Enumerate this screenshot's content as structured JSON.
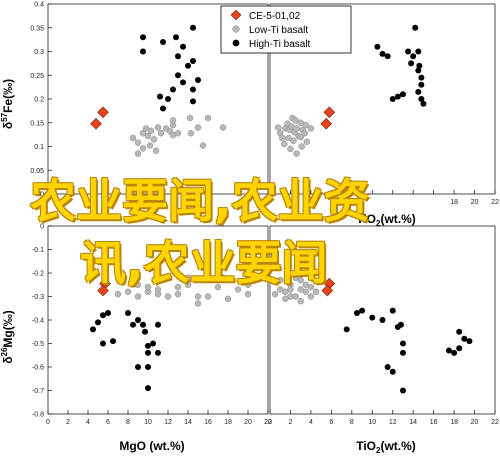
{
  "chart_data": [
    {
      "id": "tl",
      "type": "scatter",
      "xlim": [
        0,
        22
      ],
      "ylim": [
        0.0,
        0.4
      ],
      "xticks": [],
      "yticks": [
        0.0,
        0.05,
        0.1,
        0.15,
        0.2,
        0.25,
        0.3,
        0.35,
        0.4
      ],
      "ylabel": "δ57Fe(‰)",
      "xlabel": "",
      "series": [
        {
          "key": "ce",
          "points": [
            [
              5.5,
              0.172
            ],
            [
              4.8,
              0.148
            ]
          ]
        },
        {
          "key": "low",
          "points": [
            [
              8.5,
              0.118
            ],
            [
              9.0,
              0.108
            ],
            [
              9.5,
              0.128
            ],
            [
              9.8,
              0.138
            ],
            [
              10.0,
              0.122
            ],
            [
              10.3,
              0.133
            ],
            [
              10.6,
              0.115
            ],
            [
              11.0,
              0.14
            ],
            [
              11.3,
              0.128
            ],
            [
              11.8,
              0.138
            ],
            [
              12.2,
              0.132
            ],
            [
              12.5,
              0.124
            ],
            [
              13.0,
              0.128
            ],
            [
              12.5,
              0.145
            ],
            [
              12.5,
              0.155
            ],
            [
              9.5,
              0.096
            ],
            [
              10.2,
              0.102
            ],
            [
              10.8,
              0.091
            ],
            [
              14.2,
              0.16
            ],
            [
              14.3,
              0.128
            ],
            [
              16.0,
              0.16
            ],
            [
              15.0,
              0.14
            ],
            [
              17.5,
              0.14
            ],
            [
              15.5,
              0.102
            ],
            [
              9.0,
              0.085
            ]
          ]
        },
        {
          "key": "high",
          "points": [
            [
              9.5,
              0.33
            ],
            [
              9.5,
              0.3
            ],
            [
              11.5,
              0.32
            ],
            [
              12.8,
              0.33
            ],
            [
              13.0,
              0.29
            ],
            [
              14.5,
              0.35
            ],
            [
              13.5,
              0.31
            ],
            [
              14.0,
              0.27
            ],
            [
              13.0,
              0.25
            ],
            [
              13.5,
              0.235
            ],
            [
              12.5,
              0.22
            ],
            [
              11.2,
              0.205
            ],
            [
              11.5,
              0.18
            ],
            [
              12.0,
              0.2
            ],
            [
              14.5,
              0.28
            ],
            [
              15.0,
              0.24
            ],
            [
              14.5,
              0.195
            ],
            [
              14.5,
              0.22
            ]
          ]
        }
      ]
    },
    {
      "id": "tr",
      "type": "scatter",
      "xlim": [
        0,
        22
      ],
      "ylim": [
        0.0,
        0.4
      ],
      "xticks": [
        0,
        2,
        4,
        6,
        8,
        10,
        12,
        14,
        16,
        18,
        20,
        22
      ],
      "xticklabels_visible": [
        18,
        20,
        22
      ],
      "yticks": [],
      "xlabel": "TiO2(wt.%)",
      "ylabel": "",
      "series": [
        {
          "key": "ce",
          "points": [
            [
              5.8,
              0.172
            ],
            [
              5.5,
              0.148
            ]
          ]
        },
        {
          "key": "low",
          "points": [
            [
              0.8,
              0.14
            ],
            [
              1.0,
              0.128
            ],
            [
              1.2,
              0.118
            ],
            [
              1.5,
              0.138
            ],
            [
              1.7,
              0.148
            ],
            [
              1.9,
              0.135
            ],
            [
              2.1,
              0.142
            ],
            [
              2.4,
              0.13
            ],
            [
              2.6,
              0.138
            ],
            [
              2.8,
              0.122
            ],
            [
              3.0,
              0.12
            ],
            [
              3.2,
              0.135
            ],
            [
              3.4,
              0.128
            ],
            [
              3.6,
              0.11
            ],
            [
              1.4,
              0.105
            ],
            [
              2.0,
              0.095
            ],
            [
              2.6,
              0.085
            ],
            [
              3.1,
              0.1
            ],
            [
              2.2,
              0.16
            ],
            [
              2.5,
              0.155
            ],
            [
              3.0,
              0.15
            ],
            [
              4.0,
              0.138
            ],
            [
              1.8,
              0.118
            ],
            [
              2.3,
              0.112
            ],
            [
              3.5,
              0.145
            ]
          ]
        },
        {
          "key": "high",
          "points": [
            [
              10.5,
              0.31
            ],
            [
              11.0,
              0.295
            ],
            [
              11.5,
              0.29
            ],
            [
              13.5,
              0.3
            ],
            [
              13.8,
              0.275
            ],
            [
              14.0,
              0.29
            ],
            [
              14.2,
              0.35
            ],
            [
              14.5,
              0.3
            ],
            [
              14.5,
              0.26
            ],
            [
              14.8,
              0.23
            ],
            [
              14.8,
              0.245
            ],
            [
              13.0,
              0.21
            ],
            [
              12.5,
              0.205
            ],
            [
              12.0,
              0.2
            ],
            [
              14.5,
              0.215
            ],
            [
              14.8,
              0.2
            ],
            [
              15.0,
              0.19
            ],
            [
              14.6,
              0.27
            ]
          ]
        }
      ]
    },
    {
      "id": "bl",
      "type": "scatter",
      "xlim": [
        0,
        22
      ],
      "ylim": [
        -0.8,
        0.0
      ],
      "xticks": [
        0,
        2,
        4,
        6,
        8,
        10,
        12,
        14,
        16,
        18,
        20,
        22
      ],
      "yticks": [
        0.0,
        -0.1,
        -0.2,
        -0.3,
        -0.4,
        -0.5,
        -0.6,
        -0.7,
        -0.8
      ],
      "xlabel": "MgO (wt.%)",
      "ylabel": "δ26Mg(‰)",
      "series": [
        {
          "key": "ce",
          "points": [
            [
              5.7,
              -0.245
            ],
            [
              5.5,
              -0.275
            ]
          ]
        },
        {
          "key": "low",
          "points": [
            [
              7.0,
              -0.29
            ],
            [
              8.0,
              -0.28
            ],
            [
              9.0,
              -0.25
            ],
            [
              9.0,
              -0.3
            ],
            [
              10.0,
              -0.28
            ],
            [
              10.0,
              -0.26
            ],
            [
              11.0,
              -0.27
            ],
            [
              11.0,
              -0.29
            ],
            [
              12.0,
              -0.3
            ],
            [
              13.0,
              -0.26
            ],
            [
              13.0,
              -0.29
            ],
            [
              14.0,
              -0.25
            ],
            [
              15.0,
              -0.3
            ],
            [
              16.0,
              -0.3
            ],
            [
              17.0,
              -0.26
            ],
            [
              19.0,
              -0.27
            ],
            [
              20.0,
              -0.29
            ],
            [
              15.0,
              -0.33
            ],
            [
              18.0,
              -0.31
            ],
            [
              20.0,
              -0.25
            ],
            [
              14.0,
              -0.22
            ],
            [
              17.5,
              -0.22
            ]
          ]
        },
        {
          "key": "high",
          "points": [
            [
              4.5,
              -0.44
            ],
            [
              5.0,
              -0.41
            ],
            [
              5.5,
              -0.38
            ],
            [
              6.0,
              -0.37
            ],
            [
              8.0,
              -0.37
            ],
            [
              8.5,
              -0.42
            ],
            [
              9.0,
              -0.4
            ],
            [
              9.5,
              -0.42
            ],
            [
              9.7,
              -0.45
            ],
            [
              10.0,
              -0.51
            ],
            [
              10.0,
              -0.54
            ],
            [
              10.5,
              -0.5
            ],
            [
              11.0,
              -0.54
            ],
            [
              10.0,
              -0.6
            ],
            [
              10.0,
              -0.69
            ],
            [
              9.0,
              -0.6
            ],
            [
              5.5,
              -0.5
            ],
            [
              11.0,
              -0.42
            ],
            [
              6.5,
              -0.49
            ]
          ]
        }
      ]
    },
    {
      "id": "br",
      "type": "scatter",
      "xlim": [
        0,
        22
      ],
      "ylim": [
        -0.8,
        0.0
      ],
      "xticks": [
        0,
        2,
        4,
        6,
        8,
        10,
        12,
        14,
        16,
        18,
        20,
        22
      ],
      "yticks": [],
      "xlabel": "TiO2(wt.%)",
      "ylabel": "",
      "series": [
        {
          "key": "ce",
          "points": [
            [
              5.8,
              -0.245
            ],
            [
              5.6,
              -0.275
            ]
          ]
        },
        {
          "key": "low",
          "points": [
            [
              0.5,
              -0.29
            ],
            [
              1.0,
              -0.27
            ],
            [
              1.5,
              -0.28
            ],
            [
              2.0,
              -0.25
            ],
            [
              2.0,
              -0.3
            ],
            [
              2.5,
              -0.3
            ],
            [
              3.0,
              -0.27
            ],
            [
              3.5,
              -0.28
            ],
            [
              4.0,
              -0.3
            ],
            [
              1.0,
              -0.23
            ],
            [
              2.5,
              -0.22
            ],
            [
              3.0,
              -0.23
            ],
            [
              3.5,
              -0.25
            ],
            [
              4.0,
              -0.26
            ],
            [
              1.5,
              -0.31
            ],
            [
              3.0,
              -0.32
            ],
            [
              4.5,
              -0.28
            ],
            [
              2.0,
              -0.27
            ]
          ]
        },
        {
          "key": "high",
          "points": [
            [
              7.5,
              -0.44
            ],
            [
              8.5,
              -0.37
            ],
            [
              9.0,
              -0.36
            ],
            [
              10.0,
              -0.39
            ],
            [
              11.0,
              -0.4
            ],
            [
              12.0,
              -0.36
            ],
            [
              12.5,
              -0.43
            ],
            [
              12.8,
              -0.42
            ],
            [
              13.0,
              -0.54
            ],
            [
              13.0,
              -0.5
            ],
            [
              11.5,
              -0.6
            ],
            [
              12.0,
              -0.62
            ],
            [
              13.0,
              -0.7
            ],
            [
              17.5,
              -0.53
            ],
            [
              18.0,
              -0.54
            ],
            [
              18.5,
              -0.45
            ],
            [
              19.0,
              -0.48
            ],
            [
              19.5,
              -0.49
            ],
            [
              18.5,
              -0.52
            ]
          ]
        }
      ]
    }
  ],
  "legend": {
    "items": [
      {
        "key": "ce",
        "label": "CE-5-01,02",
        "marker": "diamond",
        "color": "#e8431f"
      },
      {
        "key": "low",
        "label": "Low-Ti basalt",
        "marker": "circle",
        "color": "#b8b8b8"
      },
      {
        "key": "high",
        "label": "High-Ti basalt",
        "marker": "circle",
        "color": "#000000"
      }
    ]
  },
  "axis_labels": {
    "tl_y_main": "δ",
    "tl_y_sup": "57",
    "tl_y_rest": "Fe(‰)",
    "bl_y_main": "δ",
    "bl_y_sup": "26",
    "bl_y_rest": "Mg(‰)",
    "bl_x": "MgO (wt.%)",
    "br_x_main": "TiO",
    "br_x_sub": "2",
    "br_x_rest": "(wt.%)",
    "tr_x_main": "TiO",
    "tr_x_sub": "2",
    "tr_x_rest": "(wt.%)"
  },
  "overlay": {
    "line1": "农业要闻,农业资",
    "line2": "讯,农业要闻"
  }
}
